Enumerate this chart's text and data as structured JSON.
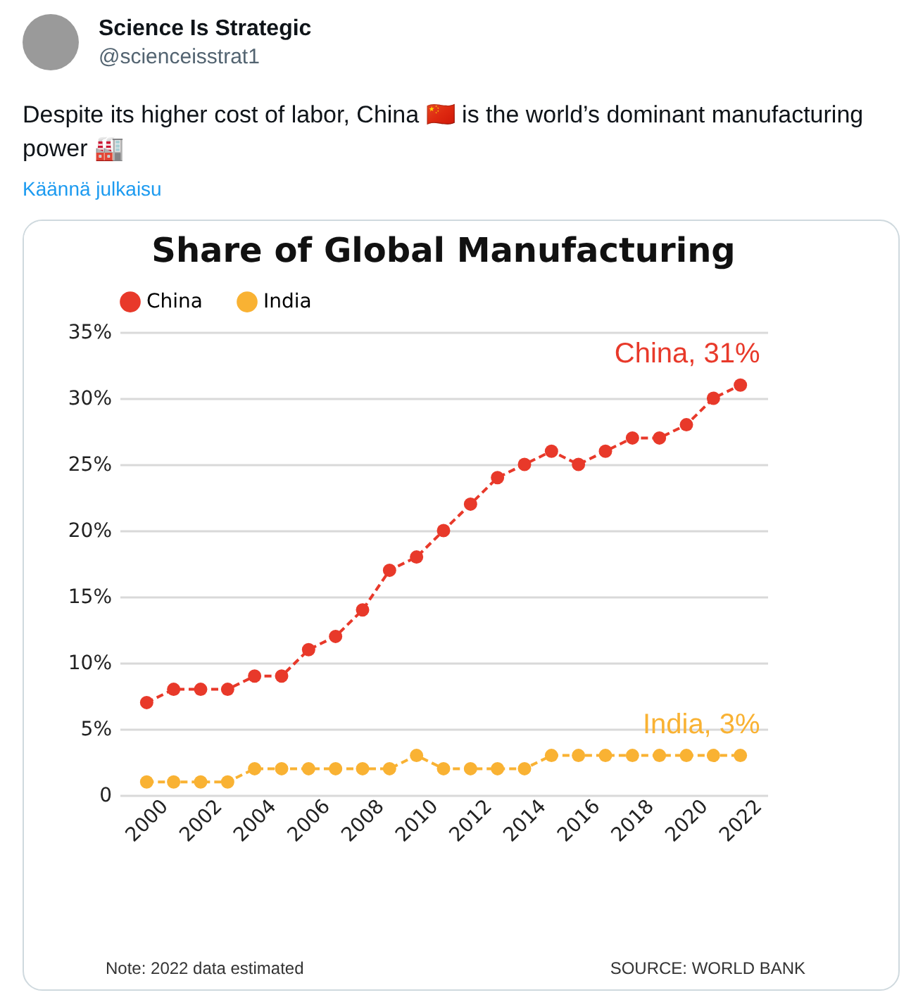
{
  "chart_data": {
    "type": "line",
    "title": "Share of Global Manufacturing",
    "x": [
      2000,
      2001,
      2002,
      2003,
      2004,
      2005,
      2006,
      2007,
      2008,
      2009,
      2010,
      2011,
      2012,
      2013,
      2014,
      2015,
      2016,
      2017,
      2018,
      2019,
      2020,
      2021,
      2022
    ],
    "series": [
      {
        "name": "China",
        "color": "#e8392a",
        "values": [
          7,
          8,
          8,
          8,
          9,
          9,
          11,
          12,
          14,
          17,
          18,
          20,
          22,
          24,
          25,
          26,
          25,
          26,
          27,
          27,
          28,
          30,
          31
        ]
      },
      {
        "name": "India",
        "color": "#f9b233",
        "values": [
          1,
          1,
          1,
          1,
          2,
          2,
          2,
          2,
          2,
          2,
          3,
          2,
          2,
          2,
          2,
          3,
          3,
          3,
          3,
          3,
          3,
          3,
          3
        ]
      }
    ],
    "xlim": [
      1999,
      2023
    ],
    "xticks": [
      2000,
      2002,
      2004,
      2006,
      2008,
      2010,
      2012,
      2014,
      2016,
      2018,
      2020,
      2022
    ],
    "ylim": [
      0,
      35
    ],
    "yticks": [
      0,
      {
        "value": 5,
        "label": "5%"
      },
      {
        "value": 10,
        "label": "10%"
      },
      {
        "value": 15,
        "label": "15%"
      },
      {
        "value": 20,
        "label": "20%"
      },
      {
        "value": 25,
        "label": "25%"
      },
      {
        "value": 30,
        "label": "30%"
      },
      {
        "value": 35,
        "label": "35%"
      }
    ],
    "annotations": [
      {
        "text": "China, 31%",
        "x": 2022,
        "y": 31
      },
      {
        "text": "India, 3%",
        "x": 2022,
        "y": 3
      },
      "Science Is Strategic",
      "@scienceisstrat1",
      "Despite its higher cost of labor, China 🇨🇳 is the world’s dominant manufacturing power 🏭",
      "Käännä julkaisu",
      "Note: 2022 data estimated",
      "SOURCE: WORLD BANK"
    ],
    "grid": "y",
    "legend": "top",
    "marker": "circle",
    "line_style": "dashed"
  }
}
